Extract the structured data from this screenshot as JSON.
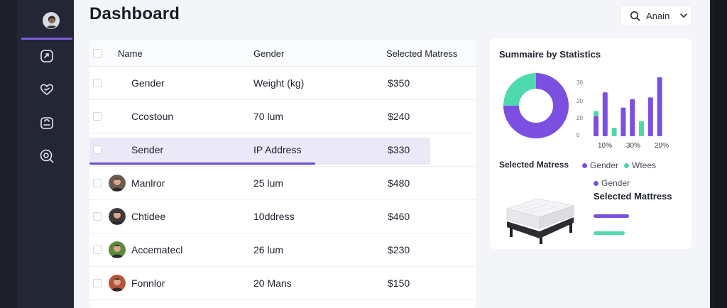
{
  "app": {
    "title": "Dashboard"
  },
  "user_menu": {
    "name": "Anain",
    "icon": "search-icon",
    "chevron": "chevron-down-icon"
  },
  "sidebar": {
    "items": [
      {
        "name": "profile",
        "icon": "avatar-icon",
        "active": true
      },
      {
        "name": "activity",
        "icon": "refresh-icon"
      },
      {
        "name": "favorites",
        "icon": "heart-icon"
      },
      {
        "name": "store",
        "icon": "bag-icon"
      },
      {
        "name": "search",
        "icon": "magnifier-icon"
      }
    ]
  },
  "table": {
    "columns": [
      "Name",
      "Gender",
      "Selected Matress"
    ],
    "rows": [
      {
        "name": "Gender",
        "col2": "Weight (kg)",
        "price": "$350",
        "avatar": false
      },
      {
        "name": "Ccostoun",
        "col2": "70 lum",
        "price": "$240",
        "avatar": false
      },
      {
        "name": "Sender",
        "col2": "IP Address",
        "price": "$330",
        "avatar": false,
        "selected": true
      },
      {
        "name": "Manlror",
        "col2": "25 lum",
        "price": "$480",
        "avatar": true,
        "avatar_color": "#6b5a4e"
      },
      {
        "name": "Chtidee",
        "col2": "10ddress",
        "price": "$460",
        "avatar": true,
        "avatar_color": "#3d3a3a"
      },
      {
        "name": "Accematecl",
        "col2": "26 lum",
        "price": "$230",
        "avatar": true,
        "avatar_color": "#5b8a3c"
      },
      {
        "name": "Fonnlor",
        "col2": "20 Mans",
        "price": "$150",
        "avatar": true,
        "avatar_color": "#b4553a"
      }
    ]
  },
  "stats": {
    "title": "Summaire by Statistics",
    "legend_title": "Selected Matress",
    "legend": [
      {
        "label": "Gender",
        "color": "#7b4fe0"
      },
      {
        "label": "Wtees",
        "color": "#4fd9ae"
      }
    ],
    "product_legend": {
      "label": "Gender",
      "color": "#7b4fe0"
    },
    "product_name": "Selected Mattress"
  },
  "chart_data": [
    {
      "type": "pie",
      "values": [
        75,
        25
      ],
      "colors": [
        "#7b4fe0",
        "#4fd9ae"
      ]
    },
    {
      "type": "bar",
      "yticks": [
        "30",
        "20",
        "20",
        "0"
      ],
      "xticks": [
        "10%",
        "30%",
        "20%"
      ],
      "series": [
        {
          "name": "Gender",
          "color": "#7b4fe0",
          "values": [
            12,
            26,
            0,
            17,
            22,
            0,
            23,
            35
          ]
        },
        {
          "name": "Wtees",
          "color": "#4fd9ae",
          "values": [
            3,
            0,
            5,
            0,
            0,
            9,
            0,
            0
          ]
        }
      ],
      "ylim": [
        0,
        37
      ]
    }
  ],
  "colors": {
    "accent": "#7b4fe0",
    "teal": "#4fd9ae",
    "sidebar": "#232634"
  }
}
